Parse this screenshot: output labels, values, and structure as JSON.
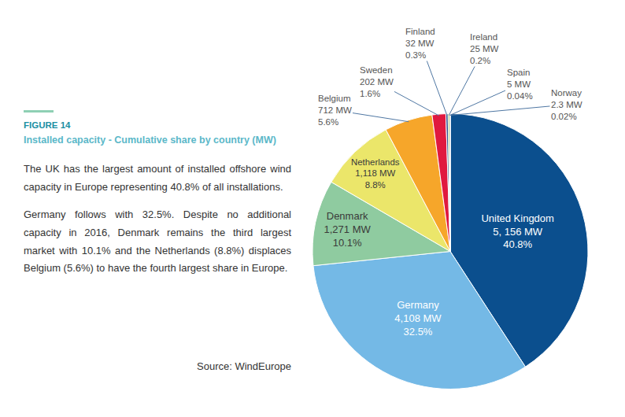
{
  "chart_data": {
    "type": "pie",
    "figure_label": "FIGURE 14",
    "title": "Installed capacity - Cumulative share by country (MW)",
    "annotations": [
      "The UK has the largest amount of installed offshore wind capacity in Europe representing 40.8% of all installations.",
      "Germany follows with 32.5%. Despite no additional capacity in 2016, Denmark remains the third largest market with 10.1% and the Netherlands (8.8%) displaces Belgium (5.6%) to have the fourth largest share in Europe."
    ],
    "source": "Source: WindEurope",
    "categories": [
      "United Kingdom",
      "Germany",
      "Denmark",
      "Netherlands",
      "Belgium",
      "Sweden",
      "Finland",
      "Ireland",
      "Spain",
      "Norway"
    ],
    "values": [
      5156,
      4108,
      1271,
      1118,
      712,
      202,
      32,
      25,
      5,
      2.3
    ],
    "value_labels": [
      "5, 156 MW",
      "4,108 MW",
      "1,271 MW",
      "1,118 MW",
      "712 MW",
      "202 MW",
      "32 MW",
      "25 MW",
      "5 MW",
      "2.3 MW"
    ],
    "percentages": [
      40.8,
      32.5,
      10.1,
      8.8,
      5.6,
      1.6,
      0.3,
      0.2,
      0.04,
      0.02
    ],
    "percentage_labels": [
      "40.8%",
      "32.5%",
      "10.1%",
      "8.8%",
      "5.6%",
      "1.6%",
      "0.3%",
      "0.2%",
      "0.04%",
      "0.02%"
    ],
    "colors": [
      "#0b4f8e",
      "#74b9e6",
      "#8fcba0",
      "#ebe66a",
      "#f6a62a",
      "#e0193f",
      "#2c4c8c",
      "#a3bd6c",
      "#bdbdbd",
      "#1e3c78"
    ],
    "data_labels": true
  }
}
